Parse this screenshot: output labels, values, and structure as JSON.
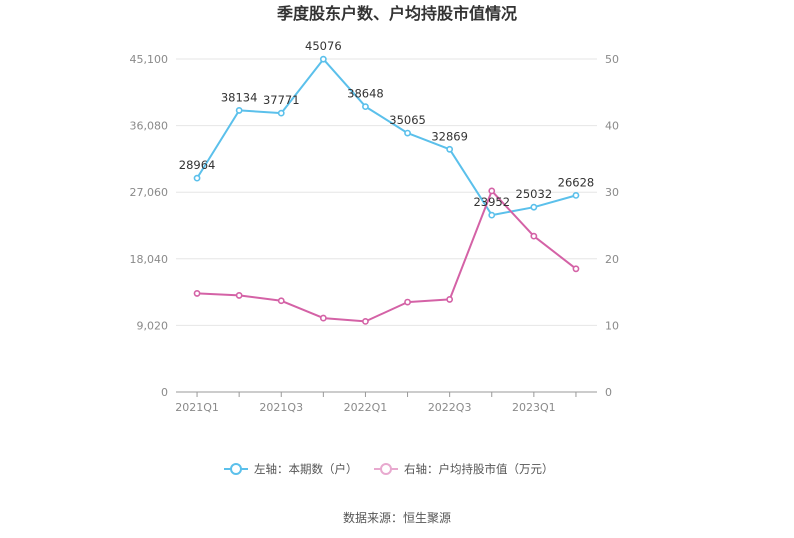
{
  "chart_data": {
    "type": "line",
    "title": "季度股东户数、户均持股市值情况",
    "categories": [
      "2021Q1",
      "2021Q2",
      "2021Q3",
      "2021Q4",
      "2022Q1",
      "2022Q2",
      "2022Q3",
      "2022Q4",
      "2023Q1",
      "2023Q2"
    ],
    "x_tick_labels": [
      "2021Q1",
      "2021Q3",
      "2022Q1",
      "2022Q3",
      "2023Q1"
    ],
    "left_axis": {
      "ticks": [
        "0",
        "9,020",
        "18,040",
        "27,060",
        "36,080",
        "45,100"
      ],
      "min": 0,
      "max": 45100
    },
    "right_axis": {
      "ticks": [
        "0",
        "10",
        "20",
        "30",
        "40",
        "50"
      ],
      "min": 0,
      "max": 50
    },
    "series": [
      {
        "name": "左轴：本期数（户）",
        "axis": "left",
        "color": "#5bc0eb",
        "values": [
          28964,
          38134,
          37771,
          45076,
          38648,
          35065,
          32869,
          23952,
          25032,
          26628
        ],
        "labels": [
          "28964",
          "38134",
          "37771",
          "45076",
          "38648",
          "35065",
          "32869",
          "23952",
          "25032",
          "26628"
        ]
      },
      {
        "name": "右轴：户均持股市值（万元）",
        "axis": "right",
        "color": "#d462a6",
        "values": [
          14.8,
          14.5,
          13.7,
          11.1,
          10.6,
          13.5,
          13.9,
          30.2,
          23.4,
          18.5
        ]
      }
    ],
    "grid": true,
    "legend": "bottom"
  },
  "source_text": "数据来源：恒生聚源"
}
